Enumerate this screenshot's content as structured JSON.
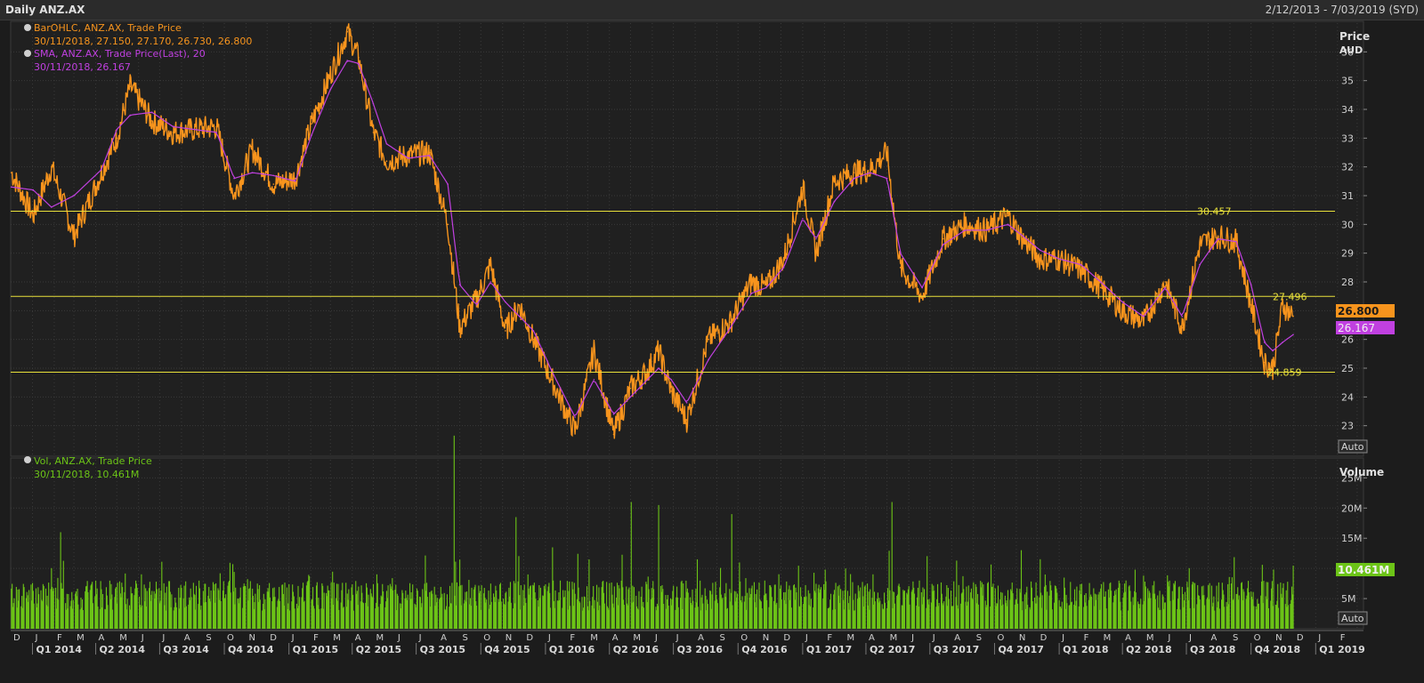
{
  "window": {
    "title": "Daily ANZ.AX",
    "date_range": "2/12/2013 - 7/03/2019 (SYD)"
  },
  "colors": {
    "price": "#f7941d",
    "sma": "#c040e0",
    "volume": "#6cc417",
    "hline": "#e8e03a",
    "grid": "#3a3a3a",
    "background": "#1c1c1c"
  },
  "chart_data": [
    {
      "type": "line",
      "panel": "price",
      "ylabel": "Price",
      "unit": "AUD",
      "ylim": [
        22,
        37
      ],
      "yticks": [
        23,
        24,
        25,
        26,
        27,
        28,
        29,
        30,
        31,
        32,
        33,
        34,
        35,
        36
      ],
      "grid": true,
      "legend": [
        {
          "name": "BarOHLC, ANZ.AX, Trade Price",
          "values_text": "30/11/2018, 27.150, 27.170, 26.730, 26.800"
        },
        {
          "name": "SMA, ANZ.AX, Trade Price(Last),  20",
          "values_text": "30/11/2018, 26.167"
        }
      ],
      "x": [
        "2013-12-02",
        "2014-01-02",
        "2014-01-28",
        "2014-03-01",
        "2014-04-09",
        "2014-05-01",
        "2014-05-20",
        "2014-06-20",
        "2014-07-20",
        "2014-08-20",
        "2014-09-20",
        "2014-10-15",
        "2014-11-10",
        "2014-12-10",
        "2015-01-10",
        "2015-02-02",
        "2015-03-01",
        "2015-03-25",
        "2015-04-10",
        "2015-05-01",
        "2015-05-20",
        "2015-06-20",
        "2015-07-20",
        "2015-08-15",
        "2015-09-01",
        "2015-09-25",
        "2015-10-15",
        "2015-11-05",
        "2015-11-25",
        "2015-12-15",
        "2016-01-10",
        "2016-02-12",
        "2016-03-10",
        "2016-04-07",
        "2016-05-01",
        "2016-05-25",
        "2016-06-10",
        "2016-06-28",
        "2016-07-20",
        "2016-08-20",
        "2016-09-20",
        "2016-10-20",
        "2016-11-10",
        "2016-12-05",
        "2017-01-01",
        "2017-01-20",
        "2017-02-15",
        "2017-03-15",
        "2017-04-07",
        "2017-05-01",
        "2017-05-20",
        "2017-06-20",
        "2017-07-20",
        "2017-08-20",
        "2017-09-20",
        "2017-10-20",
        "2017-11-10",
        "2017-12-05",
        "2018-01-01",
        "2018-02-01",
        "2018-03-01",
        "2018-04-01",
        "2018-05-01",
        "2018-06-01",
        "2018-06-25",
        "2018-07-20",
        "2018-08-15",
        "2018-09-10",
        "2018-10-01",
        "2018-10-20",
        "2018-11-01",
        "2018-11-15",
        "2018-11-30"
      ],
      "series": [
        {
          "name": "BarOHLC, ANZ.AX, Trade Price",
          "values": [
            31.8,
            30.3,
            32.0,
            29.6,
            31.8,
            33.0,
            34.8,
            33.6,
            33.2,
            33.3,
            33.4,
            31.0,
            32.6,
            31.4,
            31.6,
            33.5,
            35.2,
            36.7,
            35.8,
            33.2,
            32.2,
            32.4,
            32.5,
            30.0,
            26.4,
            27.4,
            28.6,
            26.3,
            27.2,
            26.0,
            24.6,
            22.8,
            25.6,
            22.7,
            24.3,
            24.9,
            25.6,
            24.2,
            23.2,
            26.0,
            26.6,
            28.0,
            27.8,
            28.8,
            31.3,
            29.0,
            31.5,
            31.8,
            31.9,
            32.5,
            28.5,
            27.5,
            29.5,
            30.0,
            29.8,
            30.3,
            29.5,
            28.8,
            28.8,
            28.4,
            27.8,
            27.0,
            26.6,
            28.0,
            26.4,
            29.3,
            29.6,
            29.4,
            27.2,
            25.2,
            25.0,
            27.2,
            26.8
          ]
        },
        {
          "name": "SMA, ANZ.AX, Trade Price(Last),  20",
          "values": [
            31.3,
            31.2,
            30.6,
            31.0,
            31.9,
            33.3,
            33.8,
            33.9,
            33.4,
            33.3,
            33.2,
            31.6,
            31.8,
            31.7,
            31.5,
            33.1,
            34.7,
            35.7,
            35.6,
            34.2,
            32.8,
            32.3,
            32.4,
            31.4,
            27.9,
            27.2,
            28.0,
            27.3,
            26.8,
            26.3,
            24.9,
            23.3,
            24.6,
            23.4,
            24.0,
            24.6,
            25.0,
            24.6,
            23.8,
            25.3,
            26.4,
            27.6,
            27.8,
            28.5,
            30.2,
            29.5,
            30.8,
            31.6,
            31.8,
            31.6,
            29.0,
            27.8,
            29.3,
            29.8,
            29.8,
            30.0,
            29.6,
            29.1,
            28.8,
            28.6,
            28.0,
            27.3,
            26.8,
            27.8,
            26.8,
            28.6,
            29.5,
            29.4,
            27.9,
            25.9,
            25.6,
            25.9,
            26.167
          ]
        }
      ],
      "last_price_label": "26.800",
      "last_sma_label": "26.167",
      "horizontal_lines": [
        {
          "value": 30.457,
          "label": "30.457"
        },
        {
          "value": 27.496,
          "label": "27.496"
        },
        {
          "value": 24.859,
          "label": "24.859"
        }
      ],
      "scale_button": "Auto"
    },
    {
      "type": "bar",
      "panel": "volume",
      "ylabel": "Volume",
      "ylim": [
        0,
        28
      ],
      "yticks": [
        {
          "value": 5,
          "label": "5M"
        },
        {
          "value": 10,
          "label": "10M"
        },
        {
          "value": 15,
          "label": "15M"
        },
        {
          "value": 20,
          "label": "20M"
        },
        {
          "value": 25,
          "label": "25M"
        }
      ],
      "legend": {
        "name": "Vol, ANZ.AX, Trade Price",
        "values_text": "30/11/2018, 10.461M"
      },
      "last_volume_label": "10.461M",
      "spikes": [
        {
          "x": "2015-08-24",
          "value": 32.0
        },
        {
          "x": "2015-08-15",
          "value": 19.0
        },
        {
          "x": "2016-05-02",
          "value": 21.0
        },
        {
          "x": "2016-06-10",
          "value": 20.5
        },
        {
          "x": "2017-05-08",
          "value": 21.0
        },
        {
          "x": "2016-09-22",
          "value": 19.0
        },
        {
          "x": "2015-11-20",
          "value": 18.5
        },
        {
          "x": "2014-02-10",
          "value": 16.0
        },
        {
          "x": "2018-11-30",
          "value": 10.461
        }
      ],
      "scale_button": "Auto"
    }
  ],
  "xaxis": {
    "months": [
      {
        "date": "2013-12-01",
        "label": "D"
      },
      {
        "date": "2014-01-01",
        "label": "J"
      },
      {
        "date": "2014-02-01",
        "label": "F"
      },
      {
        "date": "2014-03-01",
        "label": "M"
      },
      {
        "date": "2014-04-01",
        "label": "A"
      },
      {
        "date": "2014-05-01",
        "label": "M"
      },
      {
        "date": "2014-06-01",
        "label": "J"
      },
      {
        "date": "2014-07-01",
        "label": "J"
      },
      {
        "date": "2014-08-01",
        "label": "A"
      },
      {
        "date": "2014-09-01",
        "label": "S"
      },
      {
        "date": "2014-10-01",
        "label": "O"
      },
      {
        "date": "2014-11-01",
        "label": "N"
      },
      {
        "date": "2014-12-01",
        "label": "D"
      },
      {
        "date": "2015-01-01",
        "label": "J"
      },
      {
        "date": "2015-02-01",
        "label": "F"
      },
      {
        "date": "2015-03-01",
        "label": "M"
      },
      {
        "date": "2015-04-01",
        "label": "A"
      },
      {
        "date": "2015-05-01",
        "label": "M"
      },
      {
        "date": "2015-06-01",
        "label": "J"
      },
      {
        "date": "2015-07-01",
        "label": "J"
      },
      {
        "date": "2015-08-01",
        "label": "A"
      },
      {
        "date": "2015-09-01",
        "label": "S"
      },
      {
        "date": "2015-10-01",
        "label": "O"
      },
      {
        "date": "2015-11-01",
        "label": "N"
      },
      {
        "date": "2015-12-01",
        "label": "D"
      },
      {
        "date": "2016-01-01",
        "label": "J"
      },
      {
        "date": "2016-02-01",
        "label": "F"
      },
      {
        "date": "2016-03-01",
        "label": "M"
      },
      {
        "date": "2016-04-01",
        "label": "A"
      },
      {
        "date": "2016-05-01",
        "label": "M"
      },
      {
        "date": "2016-06-01",
        "label": "J"
      },
      {
        "date": "2016-07-01",
        "label": "J"
      },
      {
        "date": "2016-08-01",
        "label": "A"
      },
      {
        "date": "2016-09-01",
        "label": "S"
      },
      {
        "date": "2016-10-01",
        "label": "O"
      },
      {
        "date": "2016-11-01",
        "label": "N"
      },
      {
        "date": "2016-12-01",
        "label": "D"
      },
      {
        "date": "2017-01-01",
        "label": "J"
      },
      {
        "date": "2017-02-01",
        "label": "F"
      },
      {
        "date": "2017-03-01",
        "label": "M"
      },
      {
        "date": "2017-04-01",
        "label": "A"
      },
      {
        "date": "2017-05-01",
        "label": "M"
      },
      {
        "date": "2017-06-01",
        "label": "J"
      },
      {
        "date": "2017-07-01",
        "label": "J"
      },
      {
        "date": "2017-08-01",
        "label": "A"
      },
      {
        "date": "2017-09-01",
        "label": "S"
      },
      {
        "date": "2017-10-01",
        "label": "O"
      },
      {
        "date": "2017-11-01",
        "label": "N"
      },
      {
        "date": "2017-12-01",
        "label": "D"
      },
      {
        "date": "2018-01-01",
        "label": "J"
      },
      {
        "date": "2018-02-01",
        "label": "F"
      },
      {
        "date": "2018-03-01",
        "label": "M"
      },
      {
        "date": "2018-04-01",
        "label": "A"
      },
      {
        "date": "2018-05-01",
        "label": "M"
      },
      {
        "date": "2018-06-01",
        "label": "J"
      },
      {
        "date": "2018-07-01",
        "label": "J"
      },
      {
        "date": "2018-08-01",
        "label": "A"
      },
      {
        "date": "2018-09-01",
        "label": "S"
      },
      {
        "date": "2018-10-01",
        "label": "O"
      },
      {
        "date": "2018-11-01",
        "label": "N"
      },
      {
        "date": "2018-12-01",
        "label": "D"
      },
      {
        "date": "2019-01-01",
        "label": "J"
      },
      {
        "date": "2019-02-01",
        "label": "F"
      },
      {
        "date": "2019-03-01",
        "label": "M"
      }
    ],
    "quarters": [
      {
        "date": "2014-01-01",
        "label": "Q1 2014"
      },
      {
        "date": "2014-04-01",
        "label": "Q2 2014"
      },
      {
        "date": "2014-07-01",
        "label": "Q3 2014"
      },
      {
        "date": "2014-10-01",
        "label": "Q4 2014"
      },
      {
        "date": "2015-01-01",
        "label": "Q1 2015"
      },
      {
        "date": "2015-04-01",
        "label": "Q2 2015"
      },
      {
        "date": "2015-07-01",
        "label": "Q3 2015"
      },
      {
        "date": "2015-10-01",
        "label": "Q4 2015"
      },
      {
        "date": "2016-01-01",
        "label": "Q1 2016"
      },
      {
        "date": "2016-04-01",
        "label": "Q2 2016"
      },
      {
        "date": "2016-07-01",
        "label": "Q3 2016"
      },
      {
        "date": "2016-10-01",
        "label": "Q4 2016"
      },
      {
        "date": "2017-01-01",
        "label": "Q1 2017"
      },
      {
        "date": "2017-04-01",
        "label": "Q2 2017"
      },
      {
        "date": "2017-07-01",
        "label": "Q3 2017"
      },
      {
        "date": "2017-10-01",
        "label": "Q4 2017"
      },
      {
        "date": "2018-01-01",
        "label": "Q1 2018"
      },
      {
        "date": "2018-04-01",
        "label": "Q2 2018"
      },
      {
        "date": "2018-07-01",
        "label": "Q3 2018"
      },
      {
        "date": "2018-10-01",
        "label": "Q4 2018"
      },
      {
        "date": "2019-01-01",
        "label": "Q1 2019"
      }
    ]
  }
}
